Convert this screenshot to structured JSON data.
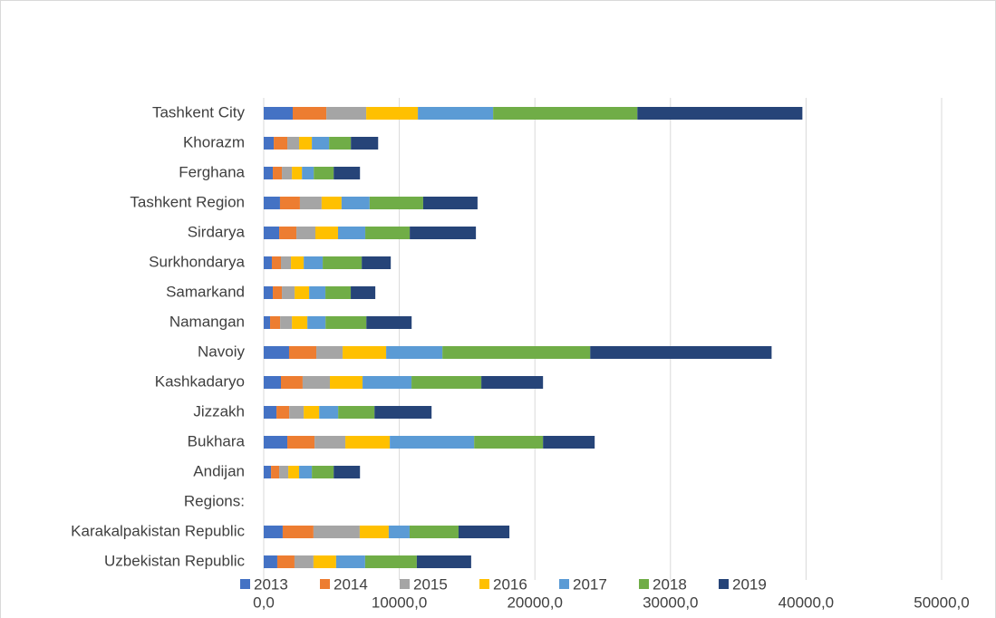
{
  "chart_data": {
    "type": "bar",
    "orientation": "horizontal",
    "stacked": true,
    "categories": [
      "Tashkent City",
      "Khorazm",
      "Ferghana",
      "Tashkent Region",
      "Sirdarya",
      "Surkhondarya",
      "Samarkand",
      "Namangan",
      "Navoiy",
      "Kashkadaryo",
      "Jizzakh",
      "Bukhara",
      "Andijan",
      "Regions:",
      "Karakalpakistan Republic",
      "Uzbekistan Republic"
    ],
    "series": [
      {
        "name": "2013",
        "color": "#4472c4",
        "values": [
          2140,
          740,
          670,
          1200,
          1140,
          600,
          670,
          470,
          1870,
          1270,
          940,
          1740,
          540,
          null,
          1400,
          1000
        ]
      },
      {
        "name": "2014",
        "color": "#ed7d31",
        "values": [
          2480,
          1000,
          670,
          1470,
          1270,
          670,
          670,
          740,
          2010,
          1600,
          940,
          2010,
          600,
          null,
          2270,
          1270
        ]
      },
      {
        "name": "2015",
        "color": "#a5a5a5",
        "values": [
          2940,
          870,
          740,
          1600,
          1400,
          740,
          940,
          870,
          1940,
          2010,
          1070,
          2270,
          670,
          null,
          3410,
          1400
        ]
      },
      {
        "name": "2016",
        "color": "#ffc000",
        "values": [
          3810,
          940,
          740,
          1470,
          1670,
          940,
          1070,
          1140,
          3210,
          2410,
          1140,
          3280,
          800,
          null,
          2140,
          1670
        ]
      },
      {
        "name": "2017",
        "color": "#5b9bd5",
        "values": [
          5550,
          1270,
          870,
          2070,
          2010,
          1400,
          1200,
          1340,
          4150,
          3610,
          1400,
          6220,
          940,
          null,
          1540,
          2140
        ]
      },
      {
        "name": "2018",
        "color": "#70ad47",
        "values": [
          10640,
          1610,
          1470,
          3950,
          3280,
          2880,
          1870,
          3010,
          10900,
          5150,
          2680,
          5080,
          1610,
          null,
          3610,
          3810
        ]
      },
      {
        "name": "2019",
        "color": "#264478",
        "values": [
          12170,
          2010,
          1940,
          4010,
          4880,
          2140,
          1810,
          3340,
          13380,
          4550,
          4210,
          3810,
          1940,
          null,
          3750,
          4010
        ]
      }
    ],
    "xlim": [
      0,
      50000
    ],
    "xticks": [
      {
        "value": 0,
        "label": "0,0"
      },
      {
        "value": 10000,
        "label": "10000,0"
      },
      {
        "value": 20000,
        "label": "20000,0"
      },
      {
        "value": 30000,
        "label": "30000,0"
      },
      {
        "value": 40000,
        "label": "40000,0"
      },
      {
        "value": 50000,
        "label": "50000,0"
      }
    ],
    "grid": true,
    "legend": "bottom"
  }
}
